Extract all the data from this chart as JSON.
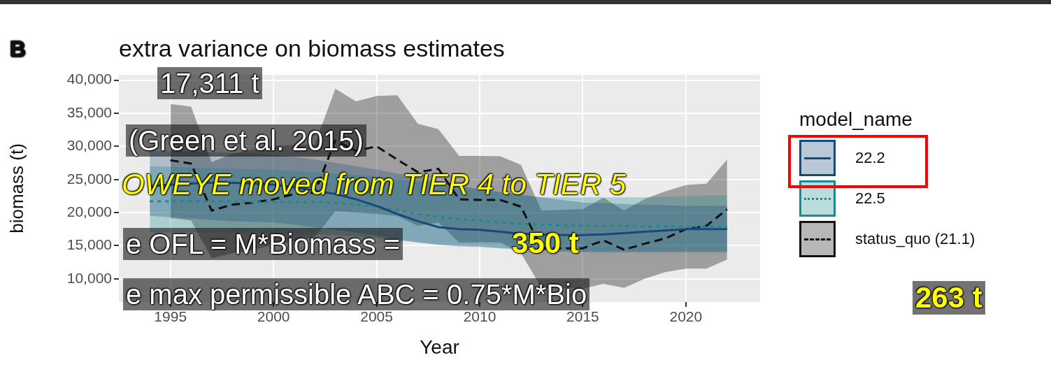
{
  "chart_data": {
    "type": "line",
    "title": "extra variance on biomass estimates",
    "xlabel": "Year",
    "ylabel": "biomass (t)",
    "legend_title": "model_name",
    "legend": "right",
    "grid": true,
    "marker": "none",
    "xlim": [
      1992.5,
      2023.6
    ],
    "xticks": [
      1995,
      2000,
      2005,
      2010,
      2015,
      2020
    ],
    "ylim": [
      6500,
      40800
    ],
    "yticks": [
      {
        "value": 10000,
        "label": "10,000"
      },
      {
        "value": 15000,
        "label": "15,000"
      },
      {
        "value": 20000,
        "label": "20,000"
      },
      {
        "value": 25000,
        "label": "25,000"
      },
      {
        "value": 30000,
        "label": "30,000"
      },
      {
        "value": 35000,
        "label": "35,000"
      },
      {
        "value": 40000,
        "label": "40,000"
      }
    ],
    "annotations": [
      "B",
      "17,311 t",
      "(Green et al. 2015)",
      "OWEYE moved from TIER 4 to TIER 5",
      "e OFL = M*Biomass =",
      "350 t",
      "e max permissible ABC = 0.75*M*Bio",
      "263 t"
    ],
    "series": [
      {
        "name": "22.2",
        "color": "#17497a",
        "line_style": "solid",
        "x": [
          1994,
          1995,
          1996,
          1997,
          1998,
          1999,
          2000,
          2001,
          2002,
          2003,
          2004,
          2005,
          2006,
          2007,
          2008,
          2009,
          2010,
          2011,
          2012,
          2013,
          2014,
          2015,
          2016,
          2017,
          2018,
          2019,
          2020,
          2021,
          2022
        ],
        "values": [
          24000,
          24200,
          24400,
          24500,
          24500,
          24400,
          24200,
          23800,
          23300,
          22800,
          22000,
          21000,
          19800,
          18700,
          17800,
          17500,
          17400,
          17100,
          16800,
          16700,
          16600,
          16600,
          16700,
          16900,
          17100,
          17300,
          17500,
          17500,
          17500
        ],
        "lower": [
          19500,
          19300,
          19100,
          18900,
          18700,
          18600,
          18500,
          18200,
          17800,
          17400,
          17000,
          16500,
          16000,
          15500,
          15100,
          14900,
          14800,
          14600,
          14400,
          14200,
          14100,
          14000,
          14000,
          14000,
          14000,
          14000,
          14000,
          14000,
          14000
        ],
        "upper": [
          29300,
          29300,
          29200,
          29100,
          29000,
          28900,
          28800,
          28400,
          28000,
          27500,
          27000,
          26500,
          25900,
          25300,
          24700,
          24100,
          23500,
          23100,
          22700,
          22300,
          21900,
          21500,
          21400,
          21300,
          21200,
          21100,
          21000,
          21000,
          21000
        ]
      },
      {
        "name": "22.5",
        "color": "#1b8a8f",
        "line_style": "dotted",
        "x": [
          1994,
          1995,
          1996,
          1997,
          1998,
          1999,
          2000,
          2001,
          2002,
          2003,
          2004,
          2005,
          2006,
          2007,
          2008,
          2009,
          2010,
          2011,
          2012,
          2013,
          2014,
          2015,
          2016,
          2017,
          2018,
          2019,
          2020,
          2021,
          2022
        ],
        "values": [
          21700,
          21700,
          21700,
          21700,
          21700,
          21600,
          21600,
          21600,
          21600,
          21500,
          21200,
          20900,
          20400,
          19800,
          19300,
          19000,
          18800,
          18500,
          18300,
          18200,
          18100,
          18000,
          18000,
          18000,
          17900,
          17900,
          17900,
          17900,
          17900
        ],
        "lower": [
          17000,
          17000,
          17000,
          17000,
          17000,
          16900,
          16900,
          16800,
          16700,
          16600,
          16400,
          16200,
          15800,
          15500,
          15200,
          15000,
          14900,
          14700,
          14500,
          14400,
          14300,
          14200,
          14200,
          14200,
          14200,
          14200,
          14200,
          14200,
          14200
        ],
        "upper": [
          27000,
          26900,
          26800,
          26700,
          26600,
          26550,
          26500,
          26300,
          26100,
          25900,
          25700,
          25500,
          25100,
          24700,
          24300,
          23900,
          23500,
          23100,
          22700,
          22300,
          22300,
          22300,
          22300,
          22300,
          22300,
          22400,
          22500,
          22600,
          22600
        ]
      },
      {
        "name": "status_quo (21.1)",
        "color": "#111111",
        "line_style": "dashed",
        "x": [
          1995,
          1996,
          1997,
          1998,
          1999,
          2000,
          2001,
          2002,
          2003,
          2004,
          2005,
          2006,
          2007,
          2008,
          2009,
          2010,
          2011,
          2012,
          2013,
          2014,
          2015,
          2016,
          2017,
          2018,
          2019,
          2020,
          2021,
          2022
        ],
        "values": [
          27900,
          27400,
          20300,
          21200,
          21500,
          22000,
          22800,
          23000,
          30900,
          29300,
          30000,
          28000,
          26100,
          26600,
          22000,
          21900,
          21900,
          20900,
          14600,
          14600,
          14600,
          15800,
          14400,
          15300,
          16100,
          17500,
          18000,
          20500
        ],
        "lower": [
          19200,
          18800,
          13100,
          13850,
          14300,
          15150,
          15700,
          16300,
          20200,
          20000,
          19800,
          19500,
          18000,
          18500,
          15500,
          15500,
          15500,
          13850,
          8650,
          8650,
          8500,
          9250,
          8650,
          10000,
          11000,
          11550,
          11550,
          12900
        ],
        "upper": [
          36400,
          36000,
          27600,
          28900,
          29500,
          30100,
          30200,
          30300,
          38700,
          36800,
          37600,
          37700,
          33400,
          32600,
          28550,
          28550,
          28500,
          27200,
          20300,
          20400,
          20500,
          22250,
          20300,
          22050,
          23200,
          24150,
          24350,
          28000
        ]
      }
    ]
  }
}
